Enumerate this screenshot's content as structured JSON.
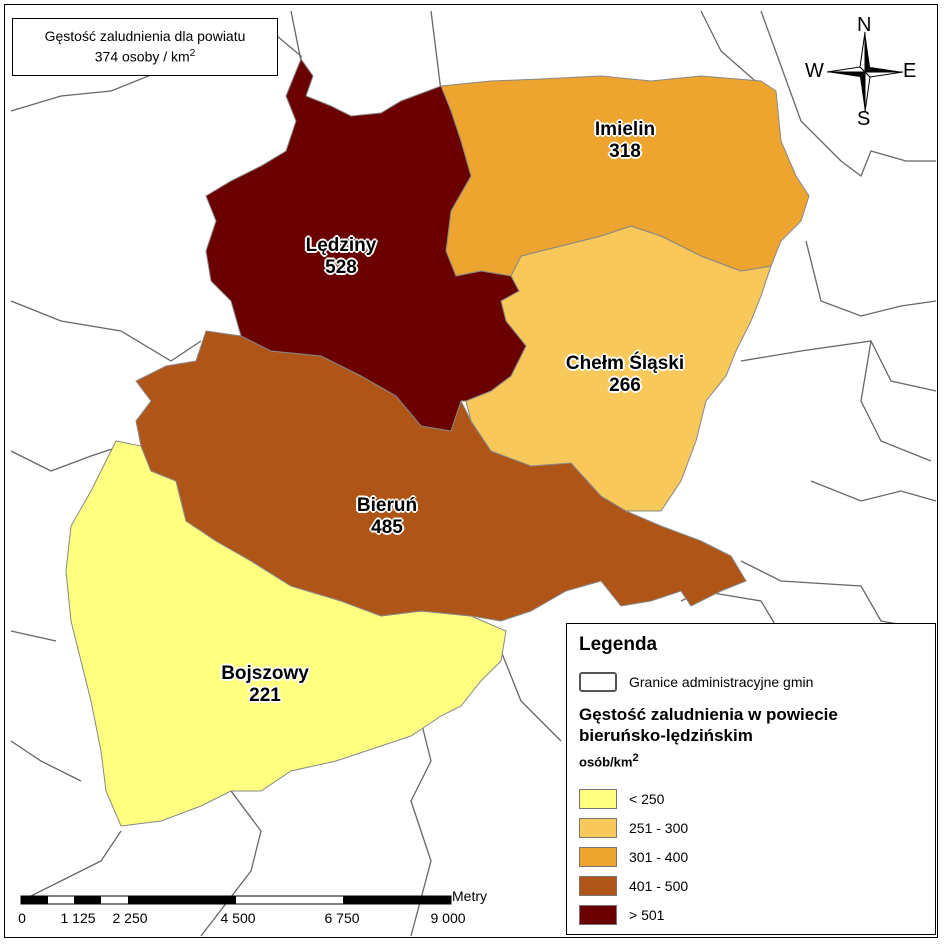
{
  "title": {
    "line1": "Gęstość zaludnienia dla powiatu",
    "line2": "374 osoby / km",
    "line2_sup": "2"
  },
  "regions": [
    {
      "name": "Lędziny",
      "density": "528",
      "class": 5
    },
    {
      "name": "Imielin",
      "density": "318",
      "class": 3
    },
    {
      "name": "Chełm Śląski",
      "density": "266",
      "class": 2
    },
    {
      "name": "Bieruń",
      "density": "485",
      "class": 4
    },
    {
      "name": "Bojszowy",
      "density": "221",
      "class": 1
    }
  ],
  "legend": {
    "title": "Legenda",
    "boundary_label": "Granice administracyjne gmin",
    "density_title_line1": "Gęstość zaludnienia w powiecie",
    "density_title_line2": "bieruńsko-lędzińskim",
    "unit": "osób/km",
    "unit_sup": "2",
    "classes": [
      {
        "label": "< 250",
        "color": "#ffff80"
      },
      {
        "label": "251 - 300",
        "color": "#f8c95a"
      },
      {
        "label": "301 - 400",
        "color": "#eea530"
      },
      {
        "label": "401 - 500",
        "color": "#ae5517"
      },
      {
        "label": "> 501",
        "color": "#6b0000"
      }
    ]
  },
  "scale": {
    "unit": "Metry",
    "ticks": [
      "0",
      "1 125",
      "2 250",
      "4 500",
      "6 750",
      "9 000"
    ]
  },
  "compass": {
    "n": "N",
    "s": "S",
    "w": "W",
    "e": "E"
  }
}
